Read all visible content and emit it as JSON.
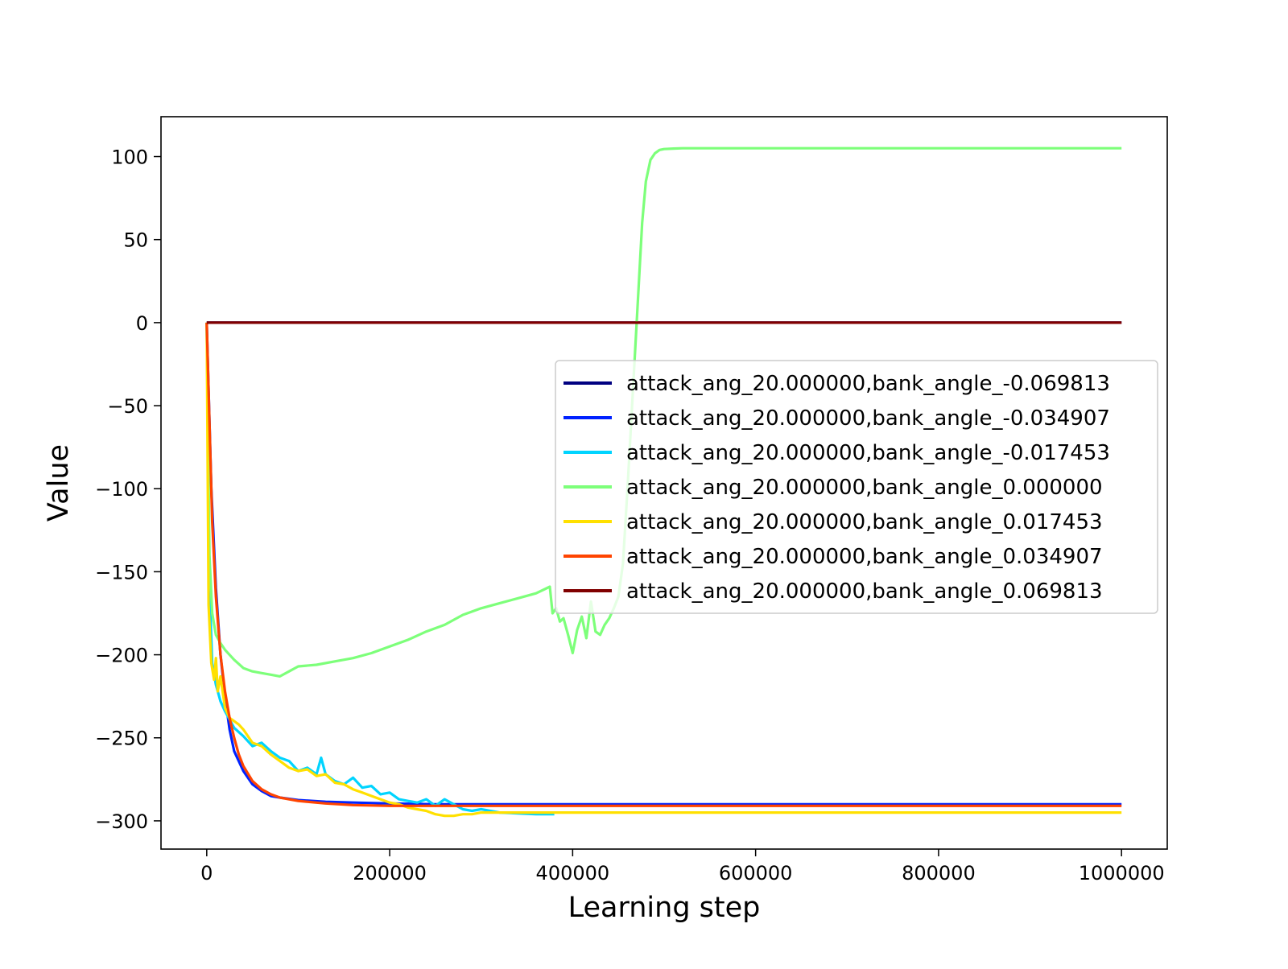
{
  "chart_data": {
    "type": "line",
    "title": "",
    "xlabel": "Learning step",
    "ylabel": "Value",
    "xlim": [
      -50000,
      1050000
    ],
    "ylim": [
      -317,
      124
    ],
    "x_ticks": [
      0,
      200000,
      400000,
      600000,
      800000,
      1000000
    ],
    "x_tick_labels": [
      "0",
      "200000",
      "400000",
      "600000",
      "800000",
      "1000000"
    ],
    "y_ticks": [
      100,
      50,
      0,
      -50,
      -100,
      -150,
      -200,
      -250,
      -300
    ],
    "y_tick_labels": [
      "100",
      "50",
      "0",
      "−50",
      "−100",
      "−150",
      "−200",
      "−250",
      "−300"
    ],
    "grid": false,
    "legend_position": "center-right",
    "series": [
      {
        "name": "attack_ang_20.000000,bank_angle_-0.069813",
        "color": "#000080",
        "x": [
          0,
          1000000
        ],
        "y": [
          0,
          0
        ]
      },
      {
        "name": "attack_ang_20.000000,bank_angle_-0.034907",
        "color": "#0022ff",
        "x": [
          0,
          5000,
          10000,
          15000,
          20000,
          25000,
          30000,
          40000,
          50000,
          60000,
          70000,
          80000,
          100000,
          130000,
          160000,
          200000,
          250000,
          300000,
          400000,
          600000,
          800000,
          1000000
        ],
        "y": [
          0,
          -100,
          -160,
          -200,
          -225,
          -245,
          -258,
          -270,
          -278,
          -282,
          -285,
          -286,
          -287.5,
          -288.5,
          -289,
          -289.5,
          -290,
          -290,
          -290,
          -290,
          -290,
          -290
        ]
      },
      {
        "name": "attack_ang_20.000000,bank_angle_-0.017453",
        "color": "#00d4ff",
        "x": [
          0,
          3000,
          6000,
          10000,
          15000,
          20000,
          25000,
          30000,
          40000,
          50000,
          60000,
          70000,
          80000,
          90000,
          100000,
          110000,
          120000,
          125000,
          130000,
          140000,
          150000,
          160000,
          170000,
          180000,
          190000,
          200000,
          210000,
          220000,
          230000,
          240000,
          250000,
          260000,
          270000,
          280000,
          290000,
          300000,
          320000,
          340000,
          360000,
          380000
        ],
        "y": [
          0,
          -160,
          -205,
          -218,
          -228,
          -234,
          -239,
          -244,
          -249,
          -255,
          -253,
          -258,
          -262,
          -264,
          -270,
          -268,
          -272,
          -262,
          -272,
          -276,
          -278,
          -274,
          -280,
          -279,
          -284,
          -283,
          -287,
          -288,
          -289,
          -287,
          -291,
          -287,
          -290,
          -293,
          -294,
          -293,
          -295,
          -295.5,
          -296,
          -296
        ]
      },
      {
        "name": "attack_ang_20.000000,bank_angle_0.000000",
        "color": "#7dff7a",
        "x": [
          0,
          3000,
          6000,
          10000,
          15000,
          20000,
          30000,
          40000,
          50000,
          60000,
          70000,
          80000,
          90000,
          100000,
          120000,
          140000,
          160000,
          180000,
          200000,
          220000,
          240000,
          260000,
          280000,
          300000,
          320000,
          340000,
          360000,
          375000,
          378000,
          382000,
          386000,
          390000,
          395000,
          400000,
          405000,
          410000,
          415000,
          420000,
          425000,
          430000,
          435000,
          440000,
          445000,
          450000,
          455000,
          460000,
          465000,
          470000,
          473000,
          476000,
          480000,
          485000,
          490000,
          495000,
          500000,
          510000,
          520000,
          600000,
          700000,
          800000,
          900000,
          1000000
        ],
        "y": [
          0,
          -140,
          -175,
          -188,
          -193,
          -197,
          -203,
          -208,
          -210,
          -211,
          -212,
          -213,
          -210,
          -207,
          -206,
          -204,
          -202,
          -199,
          -195,
          -191,
          -186,
          -182,
          -176,
          -172,
          -169,
          -166,
          -163,
          -159,
          -175,
          -172,
          -180,
          -178,
          -188,
          -199,
          -185,
          -177,
          -190,
          -168,
          -186,
          -188,
          -182,
          -178,
          -172,
          -165,
          -145,
          -100,
          -50,
          0,
          30,
          60,
          85,
          98,
          102,
          104,
          104.5,
          104.8,
          105,
          105,
          105,
          105,
          105,
          105
        ]
      },
      {
        "name": "attack_ang_20.000000,bank_angle_0.017453",
        "color": "#ffe000",
        "x": [
          0,
          2000,
          5000,
          8000,
          10000,
          12000,
          15000,
          20000,
          25000,
          30000,
          35000,
          40000,
          50000,
          60000,
          70000,
          80000,
          90000,
          100000,
          110000,
          120000,
          130000,
          140000,
          150000,
          160000,
          170000,
          180000,
          190000,
          200000,
          210000,
          220000,
          230000,
          240000,
          250000,
          260000,
          270000,
          280000,
          290000,
          300000,
          350000,
          400000,
          500000,
          600000,
          700000,
          800000,
          900000,
          1000000
        ],
        "y": [
          0,
          -170,
          -205,
          -215,
          -202,
          -222,
          -213,
          -232,
          -238,
          -240,
          -242,
          -245,
          -253,
          -255,
          -260,
          -264,
          -268,
          -270,
          -269,
          -273,
          -272,
          -277,
          -278,
          -281,
          -283,
          -285,
          -287,
          -289,
          -290,
          -292,
          -293,
          -294,
          -296,
          -297,
          -297,
          -296,
          -296,
          -295,
          -295,
          -295,
          -295,
          -295,
          -295,
          -295,
          -295,
          -295
        ]
      },
      {
        "name": "attack_ang_20.000000,bank_angle_0.034907",
        "color": "#ff4400",
        "x": [
          0,
          3000,
          6000,
          10000,
          15000,
          20000,
          25000,
          30000,
          35000,
          40000,
          50000,
          60000,
          70000,
          80000,
          100000,
          130000,
          160000,
          200000,
          250000,
          300000,
          400000,
          600000,
          800000,
          1000000
        ],
        "y": [
          0,
          -60,
          -120,
          -165,
          -200,
          -222,
          -238,
          -250,
          -260,
          -267,
          -276,
          -281,
          -284,
          -286,
          -288,
          -289.5,
          -290.5,
          -291,
          -291,
          -291,
          -291,
          -291,
          -291,
          -291
        ]
      },
      {
        "name": "attack_ang_20.000000,bank_angle_0.069813",
        "color": "#800000",
        "x": [
          0,
          1000000
        ],
        "y": [
          0,
          0
        ]
      }
    ]
  }
}
